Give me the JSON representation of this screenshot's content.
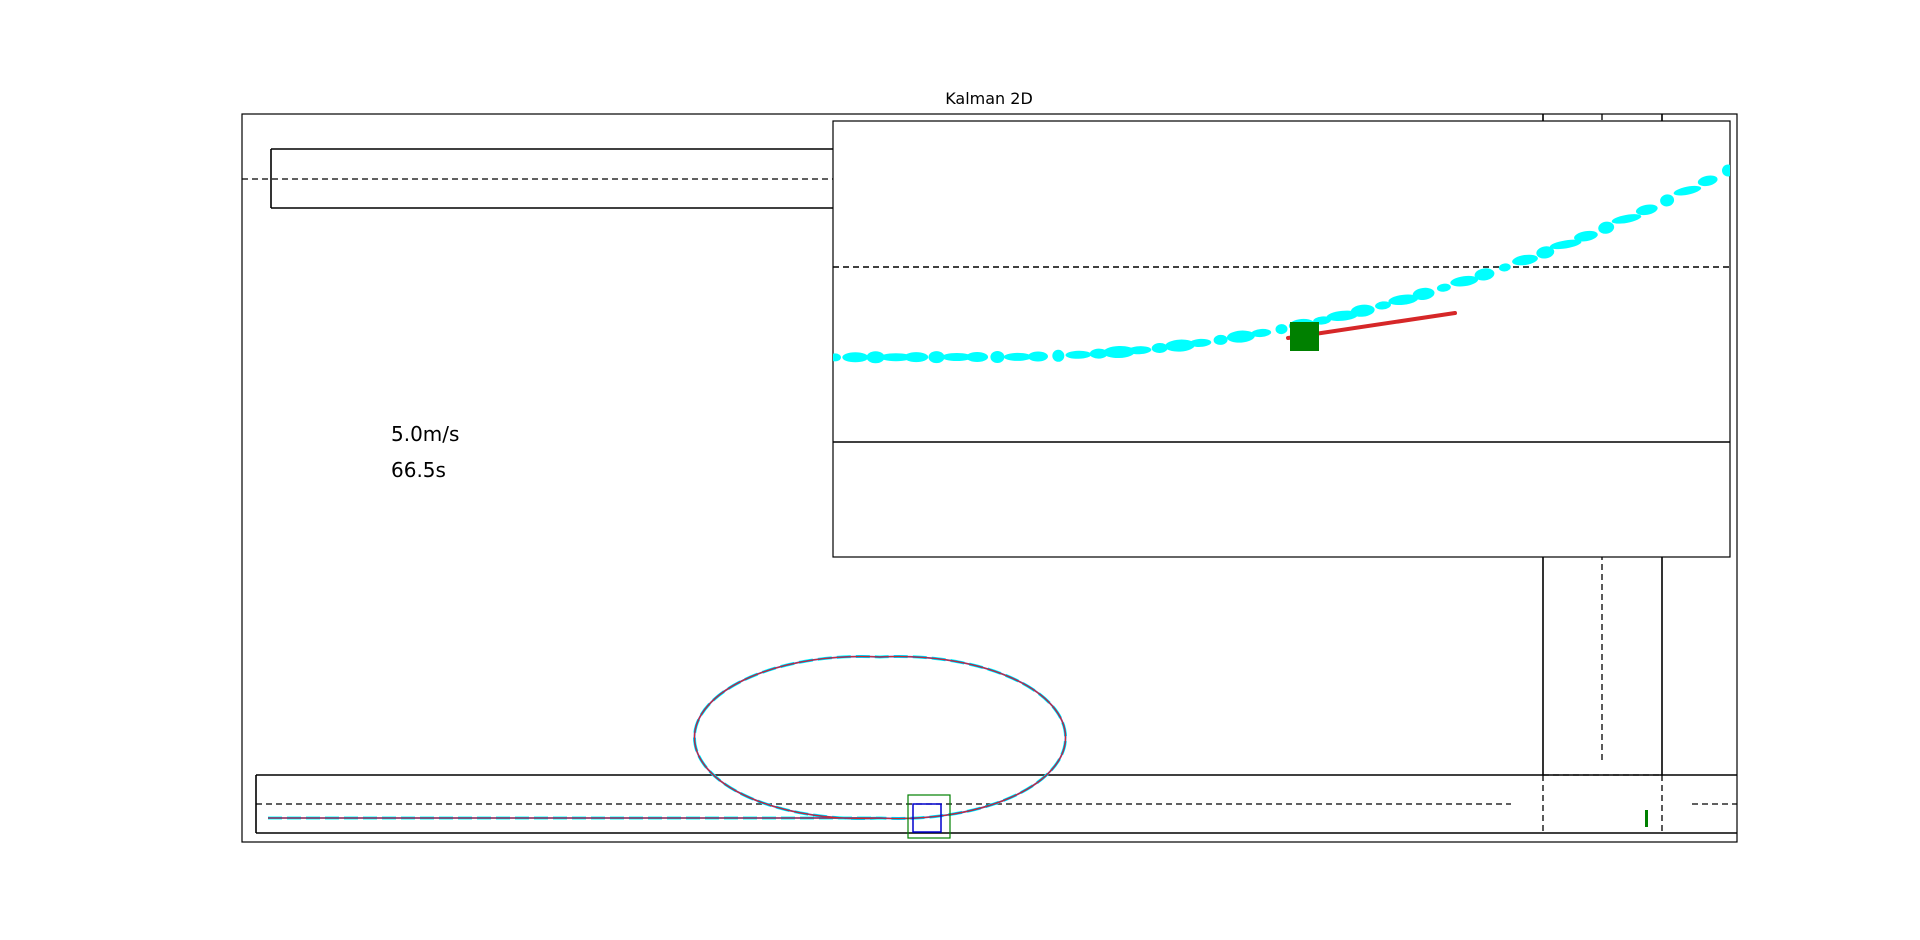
{
  "chart_data": {
    "type": "scatter",
    "title": "Kalman 2D",
    "xlabel": "",
    "ylabel": "",
    "grid": false,
    "legend": "none",
    "annotations": {
      "speed": "5.0m/s",
      "time": "66.5s"
    },
    "road": {
      "line_color": "#000000",
      "lane_divider": "dashed"
    },
    "trajectory": {
      "name": "",
      "shape": "ellipse-loop",
      "center_on_line": true,
      "measurement_color": "#00ffff",
      "estimate_color": "#1f3fbf",
      "path_color": "#d62728"
    },
    "vehicle": {
      "color": "#008000",
      "heading_color": "#d62728"
    },
    "inset": {
      "zoom_box_color": "#008000",
      "view_box_color": "#0000cd",
      "visible_measurement_count": 45
    },
    "other_vehicle_color": "#008000"
  }
}
